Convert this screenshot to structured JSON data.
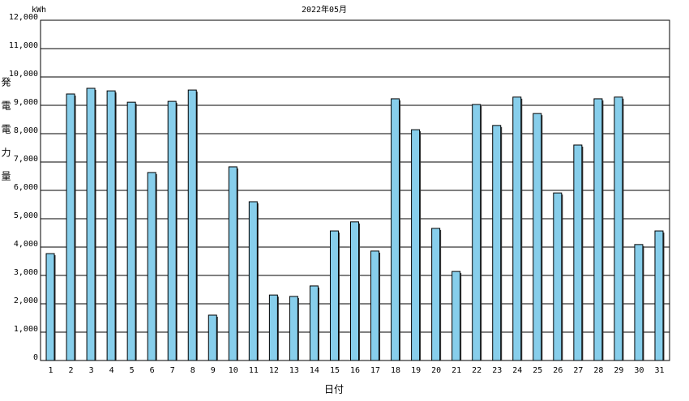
{
  "chart_data": {
    "type": "bar",
    "title": "2022年05月",
    "unit": "kWh",
    "y_label": "発電電力量",
    "x_label": "日付",
    "categories": [
      "1",
      "2",
      "3",
      "4",
      "5",
      "6",
      "7",
      "8",
      "9",
      "10",
      "11",
      "12",
      "13",
      "14",
      "15",
      "16",
      "17",
      "18",
      "19",
      "20",
      "21",
      "22",
      "23",
      "24",
      "25",
      "26",
      "27",
      "28",
      "29",
      "30",
      "31"
    ],
    "values": [
      3770,
      9400,
      9600,
      9510,
      9110,
      6630,
      9140,
      9540,
      1600,
      6830,
      5600,
      2310,
      2260,
      2630,
      4570,
      4890,
      3860,
      9230,
      8140,
      4660,
      3140,
      9030,
      8290,
      9290,
      8710,
      5910,
      7600,
      9230,
      9290,
      4090,
      4570
    ],
    "color": "#87ceeb",
    "ylim": [
      0,
      12000
    ],
    "yticks": [
      0,
      {
        "value": 1000,
        "label": "1,000"
      },
      {
        "value": 2000,
        "label": "2,000"
      },
      {
        "value": 3000,
        "label": "3,000"
      },
      {
        "value": 4000,
        "label": "4,000"
      },
      {
        "value": 5000,
        "label": "5,000"
      },
      {
        "value": 6000,
        "label": "6,000"
      },
      {
        "value": 7000,
        "label": "7,000"
      },
      {
        "value": 8000,
        "label": "8,000"
      },
      {
        "value": 9000,
        "label": "9,000"
      },
      {
        "value": 10000,
        "label": "10,000"
      },
      {
        "value": 11000,
        "label": "11,000"
      },
      {
        "value": 12000,
        "label": "12,000"
      }
    ],
    "grid": true
  }
}
